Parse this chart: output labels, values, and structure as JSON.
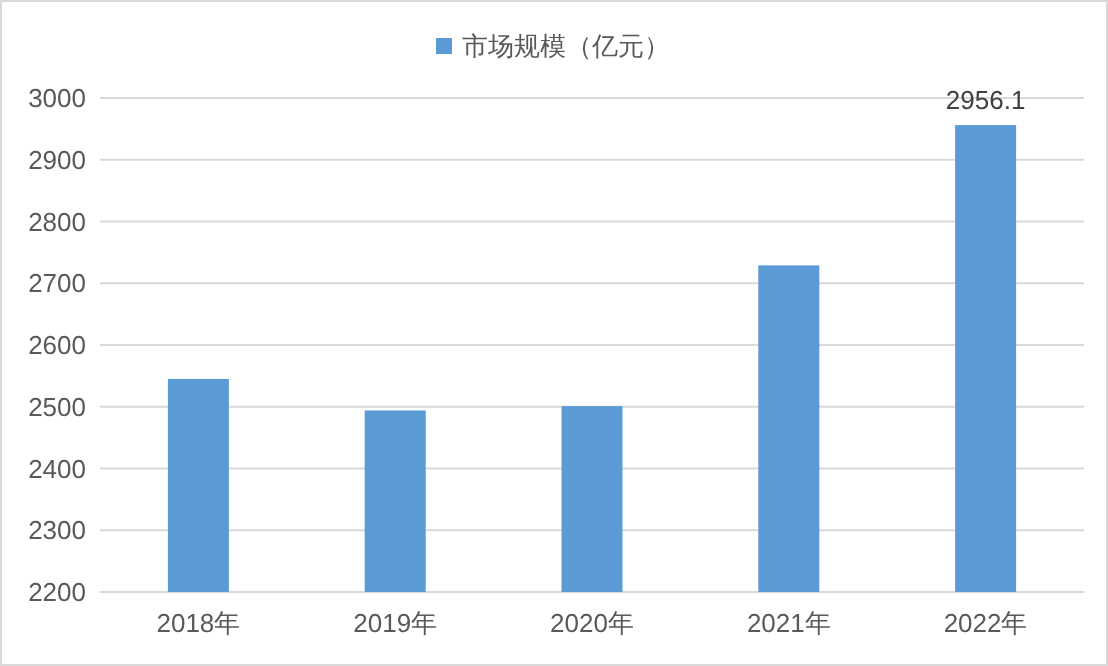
{
  "chart_data": {
    "type": "bar",
    "categories": [
      "2018年",
      "2019年",
      "2020年",
      "2021年",
      "2022年"
    ],
    "series": [
      {
        "name": "市场规模（亿元）",
        "color": "#5b9bd5",
        "values": [
          2545,
          2494,
          2501,
          2729,
          2956.1
        ],
        "value_labels": [
          null,
          null,
          null,
          null,
          "2956.1"
        ]
      }
    ],
    "ylim": [
      2200,
      3000
    ],
    "yticks": [
      2200,
      2300,
      2400,
      2500,
      2600,
      2700,
      2800,
      2900,
      3000
    ],
    "grid": "y",
    "legend": "top"
  }
}
